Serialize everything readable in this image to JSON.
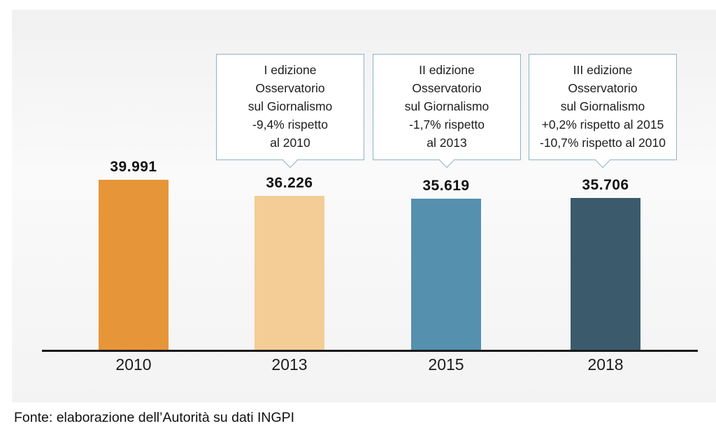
{
  "chart_data": {
    "type": "bar",
    "title": "",
    "xlabel": "",
    "ylabel": "",
    "categories": [
      "2010",
      "2013",
      "2015",
      "2018"
    ],
    "values": [
      39991,
      36226,
      35619,
      35706
    ],
    "value_labels": [
      "39.991",
      "36.226",
      "35.619",
      "35.706"
    ],
    "bar_colors": [
      "#E79539",
      "#F3CD95",
      "#5590AF",
      "#3B5B6D"
    ],
    "ylim": [
      0,
      40000
    ],
    "grid": false,
    "legend": "none",
    "axis_visible": "x-only",
    "annotations": [
      {
        "target_category": "2013",
        "lines": [
          "I edizione",
          "Osservatorio",
          "sul Giornalismo",
          "-9,4% rispetto",
          "al 2010"
        ]
      },
      {
        "target_category": "2015",
        "lines": [
          "II edizione",
          "Osservatorio",
          "sul Giornalismo",
          "-1,7% rispetto",
          "al 2013"
        ]
      },
      {
        "target_category": "2018",
        "lines": [
          "III edizione",
          "Osservatorio",
          "sul Giornalismo",
          "+0,2% rispetto al 2015",
          "-10,7% rispetto al 2010"
        ]
      }
    ]
  },
  "footer": {
    "source_text": "Fonte: elaborazione dell’Autorità su dati INGPI"
  },
  "colors": {
    "callout_border": "#8FB3C5",
    "callout_bg": "#ffffff",
    "axis_line": "#1a1a1a",
    "label_text": "#111111"
  }
}
